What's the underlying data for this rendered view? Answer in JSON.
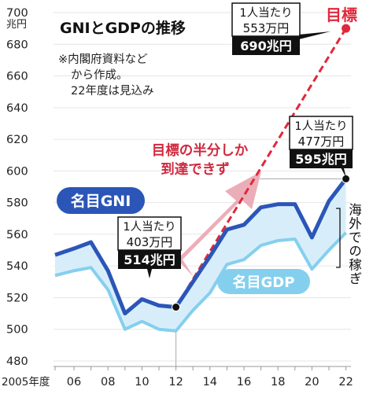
{
  "chart_data": {
    "type": "line",
    "title": "GNIとGDPの推移",
    "notes": [
      "※内閣府資料など",
      "から作成。",
      "22年度は見込み"
    ],
    "y_unit_label": "兆円",
    "x_unit_label": "2005年度",
    "ylim": [
      480,
      700
    ],
    "yticks": [
      480,
      500,
      520,
      540,
      560,
      580,
      600,
      620,
      640,
      660,
      680,
      700
    ],
    "xlim": [
      2005,
      2022
    ],
    "xticks": [
      {
        "x": 2005,
        "label": "2005年度"
      },
      {
        "x": 2006,
        "label": "06"
      },
      {
        "x": 2008,
        "label": "08"
      },
      {
        "x": 2010,
        "label": "10"
      },
      {
        "x": 2012,
        "label": "12"
      },
      {
        "x": 2014,
        "label": "14"
      },
      {
        "x": 2016,
        "label": "16"
      },
      {
        "x": 2018,
        "label": "18"
      },
      {
        "x": 2020,
        "label": "20"
      },
      {
        "x": 2022,
        "label": "22"
      }
    ],
    "grid": true,
    "x": [
      2005,
      2006,
      2007,
      2008,
      2009,
      2010,
      2011,
      2012,
      2013,
      2014,
      2015,
      2016,
      2017,
      2018,
      2019,
      2020,
      2021,
      2022
    ],
    "series": [
      {
        "name": "名目GNI",
        "color": "#2b56b8",
        "values": [
          547,
          551,
          555,
          537,
          510,
          519,
          515,
          514,
          530,
          546,
          563,
          566,
          577,
          579,
          579,
          558,
          581,
          595
        ]
      },
      {
        "name": "名目GDP",
        "color": "#85cfee",
        "values": [
          534,
          537,
          539,
          525,
          500,
          505,
          500,
          499,
          512,
          523,
          541,
          544,
          553,
          556,
          557,
          538,
          550,
          561
        ]
      }
    ],
    "target": {
      "label": "目標",
      "x_start": 2012,
      "y_start": 514,
      "x_end": 2022,
      "y_end": 690,
      "color": "#e0283c"
    },
    "gap_annotation": "目標の半分しか 到達できず",
    "band_label": "海外での稼ぎ",
    "callouts": [
      {
        "x": 2012,
        "y": 514,
        "line1": "1人当たり",
        "line2": "403万円",
        "value": "514兆円"
      },
      {
        "x": 2022,
        "y": 595,
        "line1": "1人当たり",
        "line2": "477万円",
        "value": "595兆円"
      },
      {
        "x": 2022,
        "y": 690,
        "line1": "1人当たり",
        "line2": "553万円",
        "value": "690兆円"
      }
    ]
  }
}
